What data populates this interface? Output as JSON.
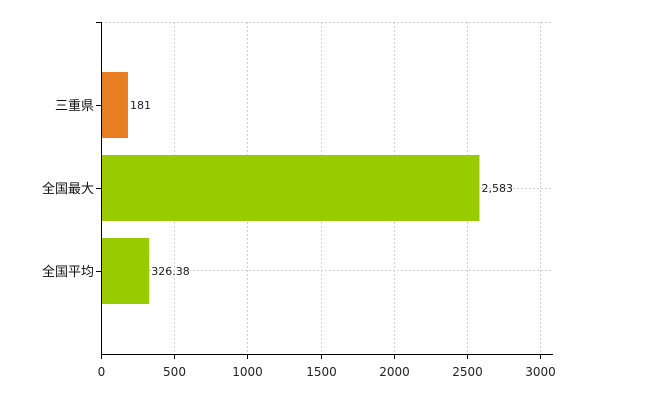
{
  "chart_data": {
    "type": "bar",
    "orientation": "horizontal",
    "categories": [
      "三重県",
      "全国最大",
      "全国平均"
    ],
    "values": [
      181,
      2583,
      326.38
    ],
    "data_labels": [
      "181",
      "2,583",
      "326.38"
    ],
    "colors": [
      "#e87e22",
      "#99cc00",
      "#99cc00"
    ],
    "xlim": [
      0,
      3000
    ],
    "xticks": [
      0,
      500,
      1000,
      1500,
      2000,
      2500,
      3000
    ],
    "xtick_labels": [
      "0",
      "500",
      "1000",
      "1500",
      "2000",
      "2500",
      "3000"
    ],
    "grid": true,
    "legend": "none"
  }
}
